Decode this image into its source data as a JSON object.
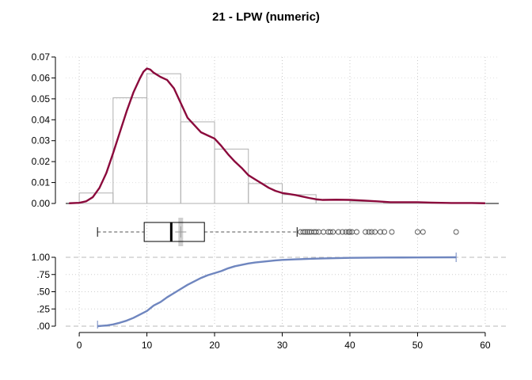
{
  "chart_data": {
    "title": "21 - LPW (numeric)",
    "x_axis": {
      "range": [
        -2,
        62
      ],
      "ticks": [
        0,
        10,
        20,
        30,
        40,
        50,
        60
      ]
    },
    "histogram": {
      "type": "bar",
      "bin_width": 5,
      "bins": [
        {
          "start": 0,
          "end": 5,
          "density": 0.005
        },
        {
          "start": 5,
          "end": 10,
          "density": 0.0505
        },
        {
          "start": 10,
          "end": 15,
          "density": 0.062
        },
        {
          "start": 15,
          "end": 20,
          "density": 0.039
        },
        {
          "start": 20,
          "end": 25,
          "density": 0.026
        },
        {
          "start": 25,
          "end": 30,
          "density": 0.0095
        },
        {
          "start": 30,
          "end": 35,
          "density": 0.0042
        },
        {
          "start": 35,
          "end": 40,
          "density": 0.0015
        },
        {
          "start": 40,
          "end": 45,
          "density": 0.0008
        },
        {
          "start": 45,
          "end": 50,
          "density": 0.0003
        },
        {
          "start": 50,
          "end": 55,
          "density": 0.0001
        },
        {
          "start": 55,
          "end": 60,
          "density": 0.0001
        }
      ],
      "ylim": [
        0,
        0.07
      ],
      "y_ticks": [
        "0.00",
        "0.01",
        "0.02",
        "0.03",
        "0.04",
        "0.05",
        "0.06",
        "0.07"
      ],
      "bar_color": "#b0b0b0"
    },
    "density_curve": {
      "type": "line",
      "color": "#8b0a3c",
      "x": [
        -1.5,
        0,
        1,
        2,
        3,
        4,
        5,
        6,
        7,
        8,
        9,
        9.5,
        10,
        10.5,
        11,
        12,
        13,
        14,
        15,
        16,
        17,
        18,
        19,
        20,
        21,
        22,
        23,
        24,
        25,
        26,
        27,
        28,
        29,
        30,
        31,
        32,
        33,
        34,
        35,
        36,
        38,
        40,
        42,
        44,
        46,
        48,
        50,
        52,
        55,
        58,
        60
      ],
      "y": [
        0.0001,
        0.0003,
        0.001,
        0.003,
        0.0075,
        0.0145,
        0.024,
        0.034,
        0.044,
        0.053,
        0.06,
        0.063,
        0.0645,
        0.064,
        0.0625,
        0.0605,
        0.059,
        0.055,
        0.048,
        0.041,
        0.0375,
        0.034,
        0.0325,
        0.031,
        0.0275,
        0.0235,
        0.02,
        0.017,
        0.0135,
        0.0115,
        0.0095,
        0.0075,
        0.006,
        0.005,
        0.0045,
        0.004,
        0.0033,
        0.0026,
        0.002,
        0.0017,
        0.0018,
        0.0017,
        0.0014,
        0.001,
        0.0006,
        0.0006,
        0.0006,
        0.0004,
        0.0002,
        0.0002,
        0.0001
      ]
    },
    "boxplot": {
      "type": "box",
      "whisker_low": 2.7,
      "q1": 9.6,
      "median": 13.6,
      "q3": 18.5,
      "whisker_high": 32.2,
      "mean": 15.0,
      "outliers": [
        32.7,
        33.1,
        33.4,
        33.7,
        34.0,
        34.3,
        34.7,
        35.0,
        35.4,
        36.1,
        36.8,
        37.1,
        37.5,
        38.3,
        38.9,
        39.4,
        39.8,
        40.0,
        40.3,
        41.0,
        42.3,
        42.8,
        43.2,
        43.7,
        44.5,
        45.1,
        46.2,
        50.0,
        50.8,
        55.7
      ]
    },
    "ecdf": {
      "type": "line",
      "color": "#6f86bf",
      "ylim": [
        0,
        1
      ],
      "y_ticks": [
        ".00",
        ".25",
        ".50",
        ".75",
        "1.00"
      ],
      "x": [
        2.7,
        4,
        5,
        6,
        7,
        8,
        9,
        10,
        11,
        12,
        13,
        14,
        15,
        16,
        17,
        18,
        19,
        20,
        21,
        22,
        23,
        24,
        25,
        26,
        27,
        28,
        29,
        30,
        32,
        34,
        36,
        38,
        40,
        45,
        50,
        55.7
      ],
      "y": [
        0.0,
        0.01,
        0.025,
        0.05,
        0.08,
        0.12,
        0.17,
        0.22,
        0.3,
        0.35,
        0.42,
        0.48,
        0.54,
        0.6,
        0.65,
        0.7,
        0.74,
        0.77,
        0.8,
        0.84,
        0.87,
        0.89,
        0.91,
        0.925,
        0.935,
        0.945,
        0.955,
        0.962,
        0.97,
        0.978,
        0.984,
        0.988,
        0.992,
        0.996,
        0.998,
        1.0
      ]
    },
    "grid": true
  }
}
